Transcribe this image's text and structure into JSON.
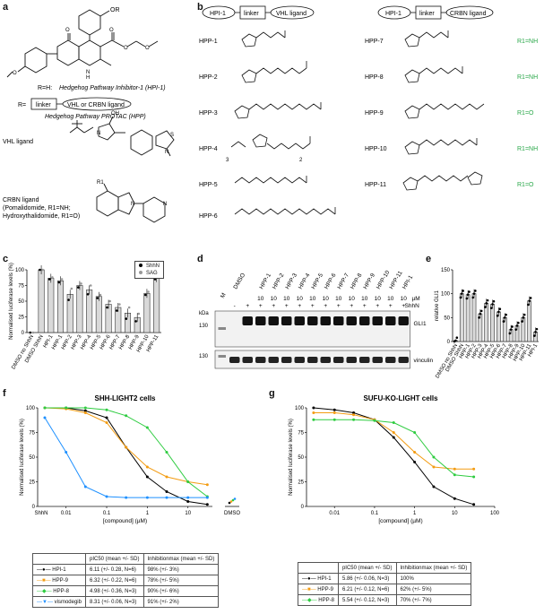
{
  "panels": {
    "a": "a",
    "b": "b",
    "c": "c",
    "d": "d",
    "e": "e",
    "f": "f",
    "g": "g"
  },
  "panel_a": {
    "or_label": "OR",
    "r_h_text": "R=H: ",
    "hpi1_name": "Hedgehog Pathway Inhibitor-1 (HPI-1)",
    "r_eq": "R=",
    "linker": "linker",
    "vhl_or_crbn": "VHL or CRBN ligand",
    "hpp_name": "Hedgehog Pathway PROTAC (HPP)",
    "vhl_ligand": "VHL ligand",
    "crbn_ligand": "CRBN ligand",
    "crbn_line2": "(Pomalidomide, R1=NH;",
    "crbn_line3": "Hydroxythalidomide, R1=O)",
    "oh": "OH",
    "r1": "R1",
    "s": "S",
    "n": "N"
  },
  "panel_b": {
    "vhl_header": [
      "HPI-1",
      "linker",
      "VHL ligand"
    ],
    "crbn_header": [
      "HPI-1",
      "linker",
      "CRBN ligand"
    ],
    "left": [
      "HPP-1",
      "HPP-2",
      "HPP-3",
      "HPP-4",
      "HPP-5",
      "HPP-6"
    ],
    "right": [
      {
        "name": "HPP-7",
        "r1": "R1=NH"
      },
      {
        "name": "HPP-8",
        "r1": "R1=NH"
      },
      {
        "name": "HPP-9",
        "r1": "R1=O"
      },
      {
        "name": "HPP-10",
        "r1": "R1=NH"
      },
      {
        "name": "HPP-11",
        "r1": "R1=O"
      }
    ],
    "sub3": "3",
    "sub2": "2"
  },
  "chart_data": [
    {
      "panel": "c",
      "type": "bar",
      "ylabel": "Normalised luciferase levels (%)",
      "ylim": [
        0,
        100
      ],
      "yticks": [
        0,
        25,
        50,
        75,
        100
      ],
      "categories": [
        "DMSO no ShhN",
        "DMSO ShhN",
        "HPI-1",
        "HPP-1",
        "HPP-2",
        "HPP-3",
        "HPP-4",
        "HPP-5",
        "HPP-6",
        "HPP-7",
        "HPP-8",
        "HPP-9",
        "HPP-10",
        "HPP-11"
      ],
      "legend": [
        "ShhN",
        "SAG"
      ],
      "series": [
        {
          "name": "ShhN",
          "values": [
            0,
            100,
            85,
            80,
            52,
            72,
            61,
            55,
            40,
            35,
            22,
            18,
            60,
            85
          ]
        },
        {
          "name": "SAG",
          "values": [
            0,
            100,
            88,
            85,
            70,
            78,
            75,
            60,
            50,
            45,
            40,
            30,
            65,
            90
          ]
        }
      ]
    },
    {
      "panel": "e",
      "type": "bar",
      "ylabel": "relative GLI1",
      "ylim": [
        0,
        150
      ],
      "yticks": [
        0,
        50,
        100,
        150
      ],
      "categories": [
        "DMSO no ShhN",
        "DMSO ShhN",
        "HPP-1",
        "HPP-2",
        "HPP-3",
        "HPP-4",
        "HPP-5",
        "HPP-6",
        "HPP-7",
        "HPP-8",
        "HPP-9",
        "HPP-10",
        "HPP-11",
        "HPI-1"
      ],
      "values": [
        2,
        100,
        98,
        100,
        58,
        80,
        78,
        62,
        50,
        25,
        33,
        50,
        85,
        20
      ]
    },
    {
      "panel": "f",
      "type": "line",
      "title": "SHH-LIGHT2 cells",
      "xlabel": "[compound] (µM)",
      "ylabel": "Normalised luciferase levels (%)",
      "xscale": "log",
      "xticks": [
        "0.01",
        "0.1",
        "1",
        "10"
      ],
      "ylim": [
        0,
        100
      ],
      "yticks": [
        0,
        25,
        50,
        75,
        100
      ],
      "extra_x": [
        "ShhN",
        "DMSO"
      ],
      "series": [
        {
          "name": "HPI-1",
          "color": "#000000",
          "pIC50": 6.11,
          "inhibition_max": 98,
          "x": [
            0.003,
            0.01,
            0.03,
            0.1,
            0.3,
            1,
            3,
            10,
            30
          ],
          "y": [
            100,
            100,
            97,
            90,
            60,
            30,
            15,
            5,
            2
          ]
        },
        {
          "name": "HPP-9",
          "color": "#f39c12",
          "pIC50": 6.32,
          "inhibition_max": 78,
          "x": [
            0.003,
            0.01,
            0.03,
            0.1,
            0.3,
            1,
            3,
            10,
            30
          ],
          "y": [
            100,
            99,
            95,
            85,
            60,
            40,
            30,
            25,
            22
          ]
        },
        {
          "name": "HPP-8",
          "color": "#2ecc40",
          "pIC50": 4.98,
          "inhibition_max": 90,
          "x": [
            0.003,
            0.01,
            0.03,
            0.1,
            0.3,
            1,
            3,
            10,
            30
          ],
          "y": [
            100,
            100,
            100,
            98,
            92,
            80,
            55,
            25,
            10
          ]
        },
        {
          "name": "vismodegib",
          "color": "#1e90ff",
          "pIC50": 8.31,
          "inhibition_max": 91,
          "x": [
            0.003,
            0.01,
            0.03,
            0.1,
            0.3,
            1,
            3,
            10,
            30
          ],
          "y": [
            90,
            55,
            20,
            10,
            9,
            9,
            9,
            9,
            9
          ]
        }
      ]
    },
    {
      "panel": "g",
      "type": "line",
      "title": "SUFU-KO-LIGHT cells",
      "xlabel": "[compound] (µM)",
      "ylabel": "Normalised luciferase levels (%)",
      "xscale": "log",
      "xticks": [
        "0.01",
        "0.1",
        "1",
        "10",
        "100"
      ],
      "ylim": [
        0,
        100
      ],
      "yticks": [
        0,
        25,
        50,
        75,
        100
      ],
      "series": [
        {
          "name": "HPI-1",
          "color": "#000000",
          "pIC50": 5.86,
          "inhibition_max": 100,
          "x": [
            0.003,
            0.01,
            0.03,
            0.1,
            0.3,
            1,
            3,
            10,
            30
          ],
          "y": [
            100,
            98,
            95,
            88,
            70,
            45,
            20,
            8,
            2
          ]
        },
        {
          "name": "HPP-9",
          "color": "#f39c12",
          "pIC50": 6.21,
          "inhibition_max": 62,
          "x": [
            0.003,
            0.01,
            0.03,
            0.1,
            0.3,
            1,
            3,
            10,
            30
          ],
          "y": [
            95,
            95,
            93,
            88,
            75,
            55,
            40,
            38,
            38
          ]
        },
        {
          "name": "HPP-8",
          "color": "#2ecc40",
          "pIC50": 5.54,
          "inhibition_max": 70,
          "x": [
            0.003,
            0.01,
            0.03,
            0.1,
            0.3,
            1,
            3,
            10,
            30
          ],
          "y": [
            88,
            88,
            88,
            87,
            85,
            75,
            50,
            32,
            30
          ]
        }
      ]
    }
  ],
  "panel_d": {
    "lanes": [
      "M",
      "DMSO",
      "",
      "HPP-1",
      "HPP-2",
      "HPP-3",
      "HPP-4",
      "HPP-5",
      "HPP-6",
      "HPP-7",
      "HPP-8",
      "HPP-9",
      "HPP-10",
      "HPP-11",
      "HPI-1"
    ],
    "um_row": [
      "",
      "",
      "",
      "10",
      "10",
      "10",
      "10",
      "10",
      "10",
      "10",
      "10",
      "10",
      "10",
      "10",
      "10"
    ],
    "shhn_row": [
      "",
      "-",
      "+",
      "+",
      "+",
      "+",
      "+",
      "+",
      "+",
      "+",
      "+",
      "+",
      "+",
      "+",
      "+"
    ],
    "um_label": "µM",
    "shhn_label": "ShhN",
    "kda": "kDa",
    "mw1": "130",
    "mw2": "130",
    "band1": "GLI1",
    "band2": "vinculin"
  },
  "table_f": {
    "header": [
      "",
      "pIC50 (mean +/- SD)",
      "Inhibitionmax (mean +/- SD)"
    ],
    "rows": [
      [
        "HPI-1",
        "6.11 (+/- 0.28, N=6)",
        "98% (+/- 3%)"
      ],
      [
        "HPP-9",
        "6.32 (+/- 0.22, N=6)",
        "78% (+/- 5%)"
      ],
      [
        "HPP-8",
        "4.98 (+/- 0.36, N=3)",
        "90% (+/- 6%)"
      ],
      [
        "vismodegib",
        "8.31 (+/- 0.06, N=3)",
        "91% (+/- 2%)"
      ]
    ]
  },
  "table_g": {
    "header": [
      "",
      "pIC50 (mean +/- SD)",
      "Inhibitionmax (mean +/- SD)"
    ],
    "rows": [
      [
        "HPI-1",
        "5.86 (+/- 0.06, N=3)",
        "100%"
      ],
      [
        "HPP-9",
        "6.21 (+/- 0.12, N=6)",
        "62% (+/- 5%)"
      ],
      [
        "HPP-8",
        "5.54 (+/- 0.12, N=3)",
        "70% (+/- 7%)"
      ]
    ]
  }
}
